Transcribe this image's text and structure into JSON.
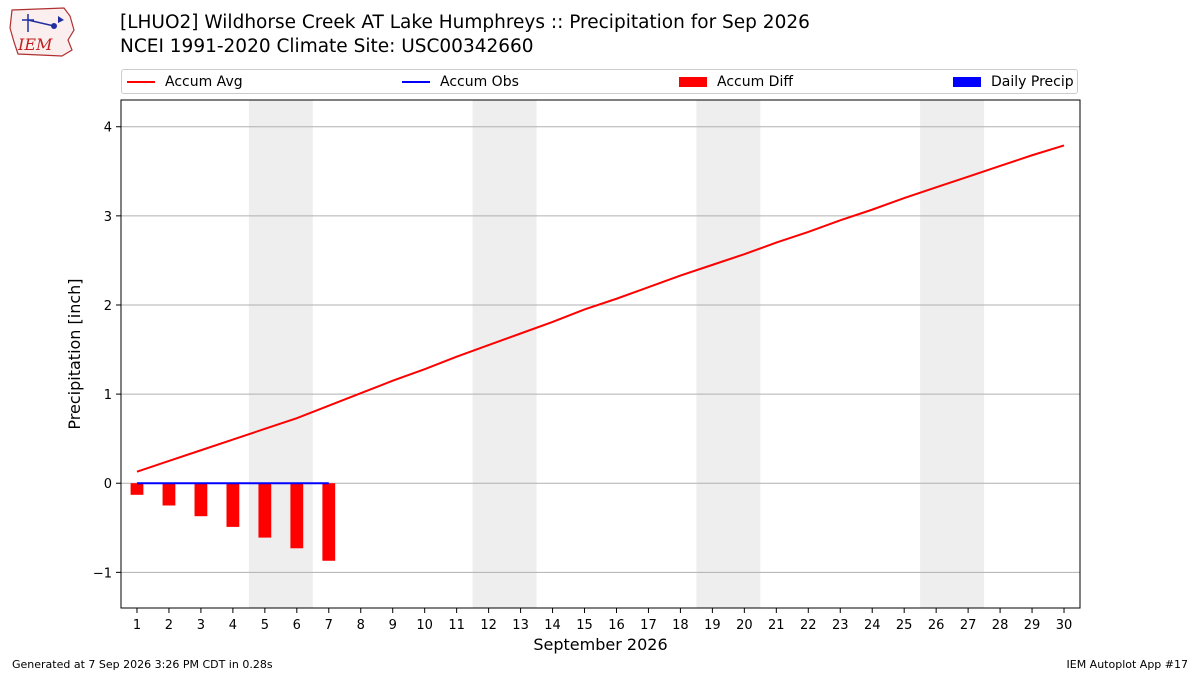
{
  "header": {
    "title_line1": "[LHUO2] Wildhorse Creek  AT Lake Humphreys :: Precipitation for Sep 2026",
    "title_line2": "NCEI 1991-2020 Climate Site: USC00342660"
  },
  "logo": {
    "text": "IEM",
    "icon": "iem-logo-icon"
  },
  "legend": {
    "items": [
      {
        "label": "Accum Avg",
        "kind": "line",
        "color": "#ff0000"
      },
      {
        "label": "Accum Obs",
        "kind": "line",
        "color": "#0000ff"
      },
      {
        "label": "Accum Diff",
        "kind": "bar",
        "color": "#ff0000"
      },
      {
        "label": "Daily Precip",
        "kind": "bar",
        "color": "#0000ff"
      }
    ]
  },
  "footer": {
    "left": "Generated at 7 Sep 2026 3:26 PM CDT in 0.28s",
    "right": "IEM Autoplot App #17"
  },
  "chart_data": {
    "type": "line",
    "xlabel": "September 2026",
    "ylabel": "Precipitation [inch]",
    "xlim": [
      0.5,
      30.5
    ],
    "ylim": [
      -1.4,
      4.3
    ],
    "x_ticks": [
      1,
      2,
      3,
      4,
      5,
      6,
      7,
      8,
      9,
      10,
      11,
      12,
      13,
      14,
      15,
      16,
      17,
      18,
      19,
      20,
      21,
      22,
      23,
      24,
      25,
      26,
      27,
      28,
      29,
      30
    ],
    "y_ticks": [
      -1,
      0,
      1,
      2,
      3,
      4
    ],
    "y_tick_labels": [
      "−1",
      "0",
      "1",
      "2",
      "3",
      "4"
    ],
    "grid": "y",
    "weekend_shading": [
      [
        4.5,
        6.5
      ],
      [
        11.5,
        13.5
      ],
      [
        18.5,
        20.5
      ],
      [
        25.5,
        27.5
      ]
    ],
    "colors": {
      "avg": "#ff0000",
      "obs": "#0000ff",
      "diff": "#ff0000",
      "daily": "#0000ff",
      "shade": "#eeeeee",
      "grid": "#b0b0b0"
    },
    "series": [
      {
        "name": "Accum Avg",
        "x": [
          1,
          2,
          3,
          4,
          5,
          6,
          7,
          8,
          9,
          10,
          11,
          12,
          13,
          14,
          15,
          16,
          17,
          18,
          19,
          20,
          21,
          22,
          23,
          24,
          25,
          26,
          27,
          28,
          29,
          30
        ],
        "values": [
          0.13,
          0.25,
          0.37,
          0.49,
          0.61,
          0.73,
          0.87,
          1.01,
          1.15,
          1.28,
          1.42,
          1.55,
          1.68,
          1.81,
          1.95,
          2.07,
          2.2,
          2.33,
          2.45,
          2.57,
          2.7,
          2.82,
          2.95,
          3.07,
          3.2,
          3.32,
          3.44,
          3.56,
          3.68,
          3.79
        ]
      },
      {
        "name": "Accum Obs",
        "x": [
          1,
          2,
          3,
          4,
          5,
          6,
          7
        ],
        "values": [
          0,
          0,
          0,
          0,
          0,
          0,
          0
        ]
      },
      {
        "name": "Accum Diff",
        "x": [
          1,
          2,
          3,
          4,
          5,
          6,
          7
        ],
        "values": [
          -0.13,
          -0.25,
          -0.37,
          -0.49,
          -0.61,
          -0.73,
          -0.87
        ]
      },
      {
        "name": "Daily Precip",
        "x": [
          1,
          2,
          3,
          4,
          5,
          6,
          7
        ],
        "values": [
          0,
          0,
          0,
          0,
          0,
          0,
          0
        ]
      }
    ]
  }
}
